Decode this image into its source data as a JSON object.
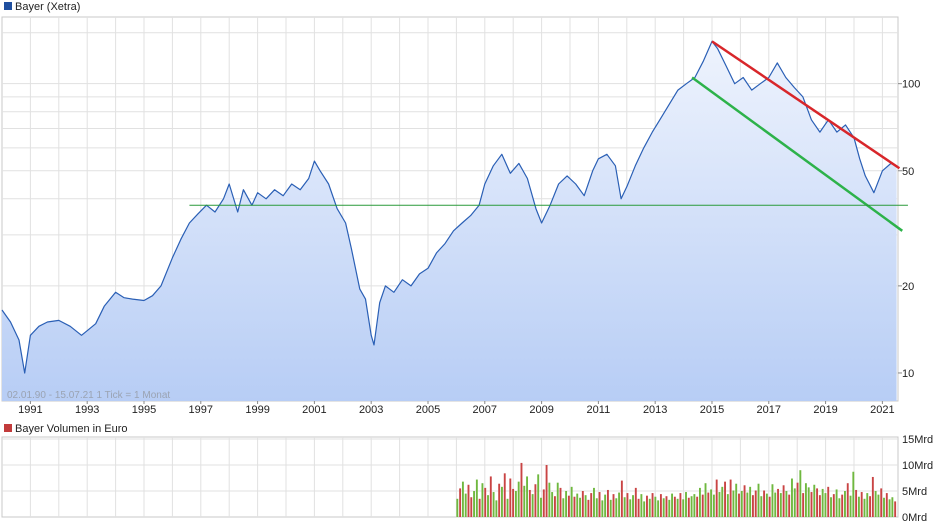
{
  "chart_data": [
    {
      "type": "area",
      "legend": "Bayer (Xetra)",
      "legend_color": "#1f4f9f",
      "info": "02.01.90 - 15.07.21   1 Tick = 1 Monat",
      "y_scale": "log",
      "ylim": [
        8,
        170
      ],
      "y_ticks": [
        10,
        20,
        50,
        100
      ],
      "x_ticks": [
        "1991",
        "1993",
        "1995",
        "1997",
        "1999",
        "2001",
        "2003",
        "2005",
        "2007",
        "2009",
        "2011",
        "2013",
        "2015",
        "2017",
        "2019",
        "2021"
      ],
      "xlim": [
        1990.0,
        2021.55
      ],
      "line_color": "#2a5fb5",
      "fill_top": "#eef3fd",
      "fill_bottom": "#b7cdf5",
      "x": [
        1990.0,
        1990.3,
        1990.6,
        1990.8,
        1991.0,
        1991.3,
        1991.6,
        1992.0,
        1992.4,
        1992.8,
        1993.0,
        1993.3,
        1993.6,
        1994.0,
        1994.3,
        1994.6,
        1995.0,
        1995.3,
        1995.6,
        1996.0,
        1996.3,
        1996.6,
        1996.9,
        1997.2,
        1997.5,
        1997.8,
        1998.0,
        1998.3,
        1998.5,
        1998.8,
        1999.0,
        1999.3,
        1999.6,
        1999.9,
        2000.2,
        2000.5,
        2000.8,
        2001.0,
        2001.2,
        2001.5,
        2001.8,
        2002.1,
        2002.3,
        2002.6,
        2002.8,
        2003.0,
        2003.1,
        2003.3,
        2003.5,
        2003.8,
        2004.1,
        2004.4,
        2004.7,
        2005.0,
        2005.3,
        2005.6,
        2005.9,
        2006.2,
        2006.5,
        2006.8,
        2007.0,
        2007.3,
        2007.6,
        2007.9,
        2008.2,
        2008.5,
        2008.8,
        2009.0,
        2009.3,
        2009.6,
        2009.9,
        2010.2,
        2010.5,
        2010.8,
        2011.0,
        2011.3,
        2011.6,
        2011.8,
        2012.0,
        2012.3,
        2012.6,
        2012.9,
        2013.2,
        2013.5,
        2013.8,
        2014.1,
        2014.4,
        2014.7,
        2015.0,
        2015.2,
        2015.5,
        2015.8,
        2016.1,
        2016.4,
        2016.7,
        2017.0,
        2017.3,
        2017.6,
        2017.9,
        2018.2,
        2018.5,
        2018.8,
        2019.1,
        2019.4,
        2019.7,
        2020.0,
        2020.2,
        2020.4,
        2020.7,
        2021.0,
        2021.3,
        2021.5
      ],
      "values": [
        16.5,
        15.0,
        13.0,
        10.0,
        13.5,
        14.5,
        15.0,
        15.2,
        14.5,
        13.5,
        14.0,
        14.8,
        17.0,
        19.0,
        18.2,
        18.0,
        17.8,
        18.5,
        20.0,
        25.0,
        29.0,
        33.0,
        35.5,
        38.0,
        36.0,
        40.0,
        45.0,
        36.0,
        43.0,
        38.0,
        42.0,
        40.0,
        43.0,
        41.0,
        45.0,
        43.0,
        47.0,
        54.0,
        50.0,
        45.0,
        37.0,
        33.0,
        27.0,
        19.5,
        18.0,
        13.5,
        12.5,
        17.5,
        20.0,
        19.0,
        21.0,
        20.0,
        22.0,
        23.0,
        26.0,
        28.0,
        31.0,
        33.0,
        35.0,
        38.0,
        45.0,
        52.0,
        57.0,
        49.0,
        53.0,
        47.0,
        37.0,
        33.0,
        38.0,
        45.0,
        48.0,
        45.0,
        41.0,
        50.0,
        55.0,
        57.0,
        52.0,
        40.0,
        44.0,
        52.0,
        60.0,
        68.0,
        76.0,
        85.0,
        95.0,
        100.0,
        105.0,
        120.0,
        140.0,
        132.0,
        115.0,
        100.0,
        105.0,
        95.0,
        100.0,
        105.0,
        118.0,
        105.0,
        97.0,
        90.0,
        75.0,
        68.0,
        75.0,
        68.0,
        72.0,
        65.0,
        55.0,
        48.0,
        42.0,
        50.0,
        53.0,
        52.0
      ]
    },
    {
      "type": "bar",
      "legend": "Bayer Volumen in Euro",
      "legend_color": "#c23b3b",
      "y_ticks": [
        "0Mrd",
        "5Mrd",
        "10Mrd",
        "15Mrd"
      ],
      "ylim": [
        0,
        15
      ],
      "start_year": 2006.0,
      "up_color": "#6fb83f",
      "down_color": "#c94444",
      "values": [
        3.5,
        5.5,
        6.8,
        4.5,
        6.2,
        3.8,
        5.0,
        7.2,
        3.5,
        6.5,
        5.6,
        4.2,
        7.8,
        4.8,
        3.2,
        6.4,
        5.8,
        8.4,
        3.5,
        7.4,
        5.4,
        5.0,
        6.8,
        10.4,
        6.0,
        7.8,
        5.2,
        4.4,
        6.3,
        8.2,
        3.7,
        5.3,
        10.0,
        6.6,
        4.8,
        4.0,
        6.6,
        5.6,
        3.6,
        5.0,
        4.1,
        5.8,
        3.9,
        4.5,
        3.7,
        5.0,
        4.2,
        3.3,
        4.6,
        5.6,
        3.6,
        4.8,
        3.2,
        4.3,
        5.2,
        3.3,
        4.4,
        3.6,
        4.7,
        7.0,
        3.8,
        4.6,
        3.4,
        4.2,
        5.6,
        3.5,
        4.4,
        3.0,
        4.1,
        3.5,
        4.6,
        3.9,
        3.2,
        4.4,
        3.6,
        4.0,
        3.3,
        4.5,
        3.9,
        3.5,
        4.6,
        3.4,
        4.8,
        3.7,
        4.0,
        4.4,
        3.9,
        5.6,
        4.3,
        6.5,
        4.7,
        5.3,
        4.3,
        7.2,
        4.8,
        5.8,
        6.8,
        4.4,
        7.2,
        5.1,
        6.4,
        4.5,
        5.0,
        6.1,
        4.7,
        5.8,
        4.2,
        5.1,
        6.4,
        4.0,
        5.1,
        4.5,
        3.9,
        6.3,
        4.7,
        5.4,
        4.6,
        6.1,
        5.0,
        4.3,
        7.4,
        5.5,
        6.6,
        9.0,
        4.6,
        6.5,
        5.7,
        4.8,
        6.2,
        5.5,
        4.2,
        5.4,
        4.6,
        5.8,
        3.8,
        4.4,
        5.3,
        3.6,
        4.3,
        5.0,
        6.5,
        4.1,
        8.7,
        5.2,
        3.9,
        4.8,
        3.5,
        4.6,
        4.0,
        7.7,
        5.0,
        4.3,
        5.5,
        3.7,
        4.6,
        3.4,
        3.8,
        3.0
      ],
      "trend": [
        1,
        0,
        1,
        1,
        0,
        0,
        1,
        1,
        0,
        1,
        0,
        1,
        0,
        1,
        1,
        0,
        1,
        0,
        1,
        0,
        0,
        1,
        1,
        0,
        1,
        1,
        0,
        1,
        0,
        1,
        1,
        0,
        0,
        1,
        1,
        0,
        1,
        0,
        1,
        1,
        0,
        1,
        0,
        1,
        1,
        0,
        1,
        0,
        0,
        1,
        1,
        0,
        1,
        1,
        0,
        1,
        0,
        1,
        1,
        0,
        1,
        0,
        1,
        1,
        0,
        0,
        1,
        1,
        0,
        1,
        0,
        1,
        1,
        0,
        1,
        0,
        1,
        1,
        0,
        1,
        0,
        1,
        1,
        0,
        1,
        1,
        0,
        1,
        0,
        1,
        0,
        1,
        1,
        0,
        1,
        1,
        0,
        1,
        0,
        1,
        1,
        0,
        1,
        0,
        1,
        1,
        0,
        0,
        1,
        1,
        0,
        1,
        0,
        1,
        1,
        0,
        1,
        0,
        1,
        0,
        1,
        1,
        0,
        1,
        0,
        1,
        1,
        0,
        1,
        0,
        0,
        1,
        1,
        0,
        1,
        0,
        1,
        1,
        0,
        1,
        0,
        1,
        1,
        0,
        1,
        0,
        1,
        1,
        0,
        0,
        1,
        1,
        0,
        1,
        0,
        1,
        1,
        0
      ]
    }
  ],
  "trendlines": [
    {
      "name": "resistance",
      "color": "#d8262a",
      "from": [
        2015.0,
        140.0
      ],
      "to": [
        2021.6,
        51.0
      ]
    },
    {
      "name": "support",
      "color": "#2db24a",
      "from": [
        2014.3,
        105.0
      ],
      "to": [
        2021.7,
        31.0
      ]
    },
    {
      "name": "horizontal",
      "color": "#2a9a3a",
      "from": [
        1996.6,
        38.0
      ],
      "to": [
        2021.9,
        38.0
      ]
    }
  ]
}
